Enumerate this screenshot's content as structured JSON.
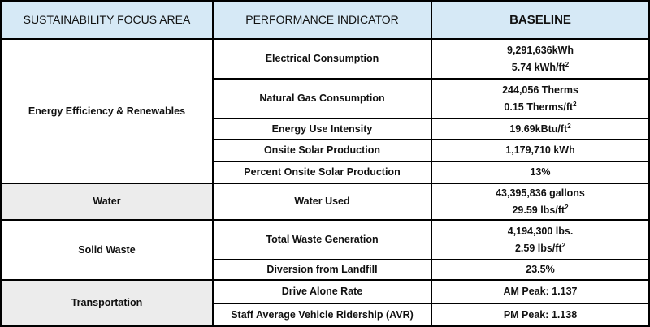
{
  "headers": {
    "focus": "SUSTAINABILITY FOCUS AREA",
    "indicator": "PERFORMANCE INDICATOR",
    "baseline": "BASELINE"
  },
  "areas": {
    "energy": "Energy Efficiency & Renewables",
    "water": "Water",
    "waste": "Solid Waste",
    "transportation": "Transportation"
  },
  "sup2": "2",
  "rows": {
    "electrical": {
      "indicator": "Electrical Consumption",
      "line1": "9,291,636kWh",
      "line2": "5.74 kWh/ft"
    },
    "gas": {
      "indicator": "Natural Gas Consumption",
      "line1": "244,056 Therms",
      "line2": "0.15 Therms/ft"
    },
    "eui": {
      "indicator": "Energy Use Intensity",
      "line1": "19.69kBtu/ft"
    },
    "solar": {
      "indicator": "Onsite Solar Production",
      "line1": "1,179,710 kWh"
    },
    "solar_pct": {
      "indicator": "Percent Onsite Solar Production",
      "line1": "13%"
    },
    "water": {
      "indicator": "Water Used",
      "line1": "43,395,836 gallons",
      "line2": "29.59 lbs/ft"
    },
    "waste_gen": {
      "indicator": "Total Waste Generation",
      "line1": "4,194,300 lbs.",
      "line2": "2.59 lbs/ft"
    },
    "diversion": {
      "indicator": "Diversion from Landfill",
      "line1": "23.5%"
    },
    "drive_alone": {
      "indicator": "Drive Alone Rate",
      "line1": "AM Peak: 1.137"
    },
    "avr": {
      "indicator": "Staff Average Vehicle Ridership (AVR)",
      "line1": "PM Peak: 1.138"
    }
  }
}
